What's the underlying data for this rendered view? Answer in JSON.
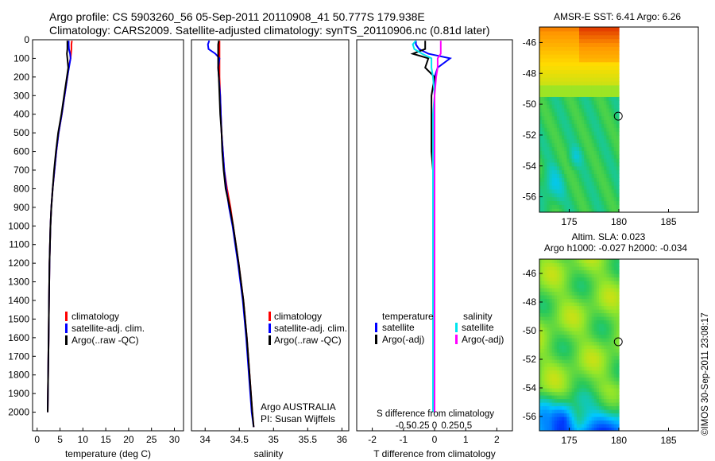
{
  "header": {
    "line1": "Argo profile: CS 5903260_56 05-Sep-2011 20110908_41 50.777S 179.938E",
    "line2": "Climatology: CARS2009. Satellite-adjusted climatology: synTS_20110906.nc (0.81d later)"
  },
  "colors": {
    "climatology": "#ff0000",
    "satellite": "#0000ff",
    "argo": "#000000",
    "sat_salinity": "#00e5ee",
    "argo_salinity": "#ff00ff"
  },
  "chart_data": [
    {
      "type": "line",
      "panel": "temperature",
      "xlabel": "temperature (deg C)",
      "xlim": [
        -1,
        32
      ],
      "ylim": [
        2100,
        0
      ],
      "xticks": [
        0,
        5,
        10,
        15,
        20,
        25,
        30
      ],
      "yticks": [
        0,
        100,
        200,
        300,
        400,
        500,
        600,
        700,
        800,
        900,
        1000,
        1100,
        1200,
        1300,
        1400,
        1500,
        1600,
        1700,
        1800,
        1900,
        2000
      ],
      "legend": [
        "climatology",
        "satellite-adj. clim.",
        "Argo(..raw -QC)"
      ],
      "y": [
        5,
        25,
        50,
        75,
        100,
        150,
        200,
        300,
        400,
        500,
        600,
        700,
        800,
        900,
        1000,
        1200,
        1400,
        1600,
        1800,
        2000
      ],
      "series": [
        {
          "name": "climatology",
          "color": "red",
          "x": [
            7.6,
            7.5,
            7.5,
            7.4,
            7.3,
            6.9,
            6.6,
            6.0,
            5.4,
            4.7,
            4.2,
            3.8,
            3.4,
            3.1,
            2.9,
            2.7,
            2.6,
            2.5,
            2.4,
            2.3
          ]
        },
        {
          "name": "satellite-adj. clim.",
          "color": "blue",
          "x": [
            6.9,
            6.9,
            6.95,
            7.2,
            7.3,
            6.95,
            6.6,
            6.0,
            5.4,
            4.7,
            4.2,
            3.8,
            3.4,
            3.1,
            2.9,
            2.7,
            2.6,
            2.5,
            2.4,
            2.3
          ]
        },
        {
          "name": "Argo(..raw -QC)",
          "color": "black",
          "x": [
            6.6,
            6.6,
            6.6,
            6.5,
            6.6,
            6.8,
            6.5,
            5.9,
            5.3,
            4.6,
            4.1,
            3.7,
            3.4,
            3.1,
            2.9,
            2.7,
            2.6,
            2.5,
            2.4,
            2.3
          ]
        }
      ]
    },
    {
      "type": "line",
      "panel": "salinity",
      "xlabel": "salinity",
      "xlim": [
        33.8,
        36.1
      ],
      "ylim": [
        2100,
        0
      ],
      "xticks": [
        34,
        34.5,
        35,
        35.5,
        36
      ],
      "legend": [
        "climatology",
        "satellite-adj. clim.",
        "Argo(..raw -QC)"
      ],
      "annotation": [
        "Argo AUSTRALIA",
        "PI: Susan Wijffels"
      ],
      "y": [
        5,
        25,
        50,
        75,
        100,
        150,
        200,
        300,
        400,
        500,
        600,
        700,
        800,
        900,
        1000,
        1200,
        1400,
        1600,
        1800,
        2000,
        2080
      ],
      "series": [
        {
          "name": "climatology",
          "color": "red",
          "x": [
            34.21,
            34.21,
            34.21,
            34.21,
            34.21,
            34.21,
            34.21,
            34.22,
            34.23,
            34.24,
            34.26,
            34.28,
            34.32,
            34.37,
            34.41,
            34.49,
            34.56,
            34.61,
            34.65,
            34.69,
            34.71
          ]
        },
        {
          "name": "satellite-adj. clim.",
          "color": "blue",
          "x": [
            34.06,
            34.04,
            34.05,
            34.15,
            34.21,
            34.19,
            34.2,
            34.22,
            34.23,
            34.24,
            34.26,
            34.28,
            34.31,
            34.35,
            34.4,
            34.48,
            34.55,
            34.6,
            34.64,
            34.68,
            34.71
          ]
        },
        {
          "name": "Argo(..raw -QC)",
          "color": "black",
          "x": [
            34.2,
            34.19,
            34.19,
            34.19,
            34.19,
            34.19,
            34.2,
            34.21,
            34.22,
            34.24,
            34.25,
            34.27,
            34.3,
            34.36,
            34.41,
            34.49,
            34.56,
            34.61,
            34.65,
            34.69,
            34.71
          ]
        }
      ]
    },
    {
      "type": "line",
      "panel": "difference",
      "xlabel": "T difference from climatology",
      "xlabel_top": "S difference from climatology",
      "xlim": [
        -2.5,
        2.5
      ],
      "ylim": [
        2100,
        0
      ],
      "xticks": [
        -2,
        -1,
        0,
        1,
        2
      ],
      "xticks_salinity": [
        "-0.5",
        "-0.25",
        "0",
        "0.25",
        "0.5"
      ],
      "legend_titles": [
        "temperature",
        "salinity"
      ],
      "legend": [
        "satellite",
        "Argo(-adj)",
        "satellite",
        "Argo(-adj)"
      ],
      "y": [
        5,
        25,
        50,
        75,
        100,
        150,
        200,
        300,
        400,
        500,
        600,
        700,
        800,
        900,
        1000,
        1200,
        1400,
        1600,
        1800,
        2000
      ],
      "series": [
        {
          "name": "satellite",
          "quantity": "temperature",
          "color": "blue",
          "x": [
            -0.6,
            -0.6,
            -0.5,
            -0.2,
            0.5,
            0.1,
            0.0,
            0.0,
            0.0,
            0.0,
            0.0,
            0.0,
            0.0,
            0.0,
            0.0,
            0.0,
            0.0,
            0.0,
            0.0,
            0.0
          ]
        },
        {
          "name": "Argo(-adj)",
          "quantity": "temperature",
          "color": "black",
          "x": [
            -0.3,
            -0.3,
            -0.3,
            -0.7,
            -0.2,
            -0.3,
            0.0,
            -0.1,
            -0.1,
            -0.1,
            -0.1,
            -0.05,
            -0.05,
            0.0,
            0.0,
            0.0,
            0.0,
            0.0,
            0.0,
            0.0
          ]
        },
        {
          "name": "satellite",
          "quantity": "salinity",
          "color": "cyan",
          "x": [
            -0.6,
            -0.7,
            -0.65,
            -0.4,
            -0.1,
            -0.1,
            -0.05,
            0.0,
            -0.05,
            -0.05,
            -0.05,
            -0.05,
            -0.05,
            -0.05,
            -0.05,
            -0.05,
            -0.05,
            -0.05,
            -0.05,
            -0.05
          ]
        },
        {
          "name": "Argo(-adj)",
          "quantity": "salinity",
          "color": "magenta",
          "x": [
            0.2,
            0.2,
            0.2,
            0.2,
            0.1,
            0.1,
            0.05,
            0.0,
            0.0,
            0.0,
            0.0,
            0.0,
            0.0,
            0.0,
            0.0,
            0.0,
            0.0,
            0.0,
            0.0,
            0.0
          ]
        }
      ]
    },
    {
      "type": "heatmap",
      "panel": "sst_map",
      "title": "AMSR-E SST: 6.41 Argo: 6.26",
      "xlim": [
        172,
        188
      ],
      "ylim": [
        -57,
        -45
      ],
      "xticks": [
        175,
        180,
        185
      ],
      "yticks": [
        -46,
        -48,
        -50,
        -52,
        -54,
        -56
      ],
      "data_xmax": 180,
      "marker": {
        "lon": 179.938,
        "lat": -50.777
      }
    },
    {
      "type": "heatmap",
      "panel": "sla_map",
      "title": "Altim. SLA: 0.023",
      "subtitle": "Argo h1000: -0.027 h2000: -0.034",
      "xlim": [
        172,
        188
      ],
      "ylim": [
        -57,
        -45
      ],
      "xticks": [
        175,
        180,
        185
      ],
      "yticks": [
        -46,
        -48,
        -50,
        -52,
        -54,
        -56
      ],
      "data_xmax": 180,
      "marker": {
        "lon": 179.938,
        "lat": -50.777
      }
    }
  ],
  "footer": {
    "stamp": "©IMOS 30-Sep-2011 23:08:17"
  }
}
